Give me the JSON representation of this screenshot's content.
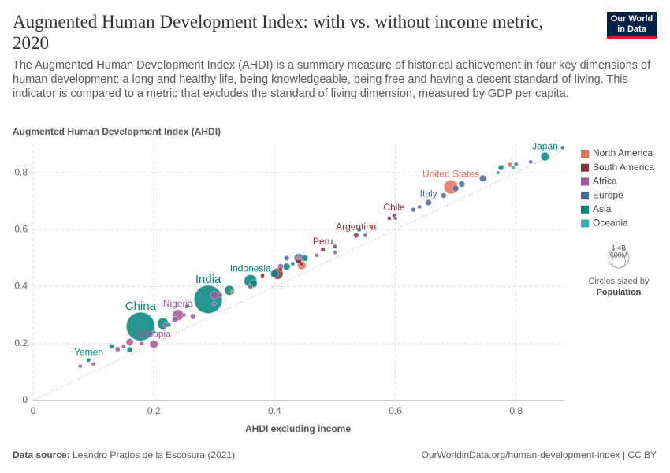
{
  "chart_data": {
    "type": "scatter",
    "title": "Augmented Human Development Index: with vs. without income metric, 2020",
    "subtitle": "The Augmented Human Development Index (AHDI) is a summary measure of historical achievement in four key dimensions of human development: a long and healthy life, being knowledgeable, being free and having a decent standard of living. This indicator is compared to a metric that excludes the standard of living dimension, measured by GDP per capita.",
    "logo": "Our World in Data",
    "y_label": "Augmented Human Development Index (AHDI)",
    "x_label": "AHDI excluding income",
    "xlim": [
      0,
      0.88
    ],
    "ylim": [
      0,
      0.9
    ],
    "xticks": [
      0,
      0.2,
      0.4,
      0.6,
      0.8
    ],
    "yticks": [
      0,
      0.2,
      0.4,
      0.6,
      0.8
    ],
    "grid": true,
    "series": [
      {
        "name": "North America",
        "color": "#e56e5a",
        "x": [
          0.692,
          0.79,
          0.445,
          0.5,
          0.56,
          0.33,
          0.2,
          0.44
        ],
        "values": [
          0.75,
          0.828,
          0.475,
          0.545,
          0.61,
          0.38,
          0.24,
          0.5
        ],
        "sizes": [
          331000000,
          38000000,
          129000000,
          11000000,
          5000000,
          17000000,
          11000000,
          3000000
        ],
        "labels": [
          "United States",
          null,
          null,
          null,
          null,
          null,
          null,
          null
        ]
      },
      {
        "name": "South America",
        "color": "#883039",
        "x": [
          0.598,
          0.535,
          0.48,
          0.405,
          0.44,
          0.59,
          0.38,
          0.445,
          0.38,
          0.41
        ],
        "values": [
          0.65,
          0.58,
          0.53,
          0.445,
          0.49,
          0.64,
          0.435,
          0.48,
          0.44,
          0.46
        ],
        "sizes": [
          19000000,
          45000000,
          33000000,
          213000000,
          51000000,
          3500000,
          28000000,
          18000000,
          12000000,
          7000000
        ],
        "labels": [
          "Chile",
          "Argentina",
          "Peru",
          null,
          null,
          null,
          null,
          null,
          null,
          null
        ]
      },
      {
        "name": "Africa",
        "color": "#a2559c",
        "x": [
          0.24,
          0.2,
          0.16,
          0.3,
          0.265,
          0.235,
          0.41,
          0.078,
          0.1,
          0.14,
          0.22,
          0.3,
          0.31,
          0.36,
          0.18,
          0.15,
          0.47,
          0.5,
          0.25
        ],
        "values": [
          0.3,
          0.198,
          0.205,
          0.37,
          0.295,
          0.285,
          0.47,
          0.12,
          0.128,
          0.18,
          0.265,
          0.34,
          0.37,
          0.4,
          0.2,
          0.19,
          0.51,
          0.52,
          0.3
        ],
        "sizes": [
          206000000,
          115000000,
          90000000,
          102000000,
          54000000,
          60000000,
          59000000,
          24000000,
          16000000,
          44000000,
          46000000,
          31000000,
          37000000,
          44000000,
          31000000,
          28000000,
          12000000,
          2400000,
          17000000
        ],
        "labels": [
          "Nigeria",
          "Ethiopia",
          null,
          null,
          null,
          null,
          null,
          null,
          null,
          null,
          null,
          null,
          null,
          null,
          null,
          null,
          null,
          null,
          null
        ]
      },
      {
        "name": "Europe",
        "color": "#4c6a9c",
        "x": [
          0.655,
          0.745,
          0.7,
          0.71,
          0.68,
          0.63,
          0.44,
          0.42,
          0.55,
          0.8,
          0.877,
          0.824,
          0.59,
          0.64,
          0.6,
          0.5
        ],
        "values": [
          0.695,
          0.78,
          0.745,
          0.76,
          0.72,
          0.67,
          0.5,
          0.5,
          0.58,
          0.83,
          0.888,
          0.838,
          0.64,
          0.68,
          0.64,
          0.54
        ],
        "sizes": [
          60000000,
          83000000,
          67000000,
          67000000,
          47000000,
          38000000,
          144000000,
          44000000,
          19000000,
          10000000,
          8600000,
          17000000,
          10000000,
          10000000,
          10000000,
          7000000
        ],
        "labels": [
          "Italy",
          null,
          null,
          null,
          null,
          null,
          null,
          null,
          null,
          null,
          null,
          null,
          null,
          null,
          null,
          null
        ]
      },
      {
        "name": "Asia",
        "color": "#00847e",
        "x": [
          0.848,
          0.775,
          0.178,
          0.29,
          0.36,
          0.092,
          0.215,
          0.325,
          0.365,
          0.4,
          0.16,
          0.13,
          0.45,
          0.42,
          0.54,
          0.43,
          0.255,
          0.225
        ],
        "values": [
          0.857,
          0.818,
          0.26,
          0.355,
          0.42,
          0.142,
          0.27,
          0.387,
          0.41,
          0.445,
          0.178,
          0.19,
          0.5,
          0.47,
          0.6,
          0.48,
          0.33,
          0.265
        ],
        "sizes": [
          126000000,
          52000000,
          1411000000,
          1380000000,
          274000000,
          30000000,
          221000000,
          165000000,
          97000000,
          110000000,
          54000000,
          39000000,
          70000000,
          84000000,
          32000000,
          21000000,
          29000000,
          17000000
        ],
        "labels": [
          "Japan",
          null,
          "China",
          "India",
          "Indonesia",
          "Yemen",
          null,
          null,
          null,
          null,
          null,
          null,
          null,
          null,
          null,
          null,
          null,
          null
        ]
      },
      {
        "name": "Oceania",
        "color": "#38aaba",
        "x": [
          0.795,
          0.77,
          0.2
        ],
        "values": [
          0.818,
          0.8,
          0.24
        ],
        "sizes": [
          25000000,
          5000000,
          9000000
        ],
        "labels": [
          null,
          null,
          null
        ]
      }
    ],
    "size_legend": {
      "ticks": [
        {
          "value": 1400000000,
          "label": "1.4B"
        },
        {
          "value": 600000000,
          "label": "600M"
        }
      ],
      "title": "Circles sized by",
      "variable": "Population"
    },
    "source_label": "Data source:",
    "source": "Leandro Prados de la Escosura (2021)",
    "footer_note": "OurWorldinData.org/human-development-index | CC BY"
  }
}
